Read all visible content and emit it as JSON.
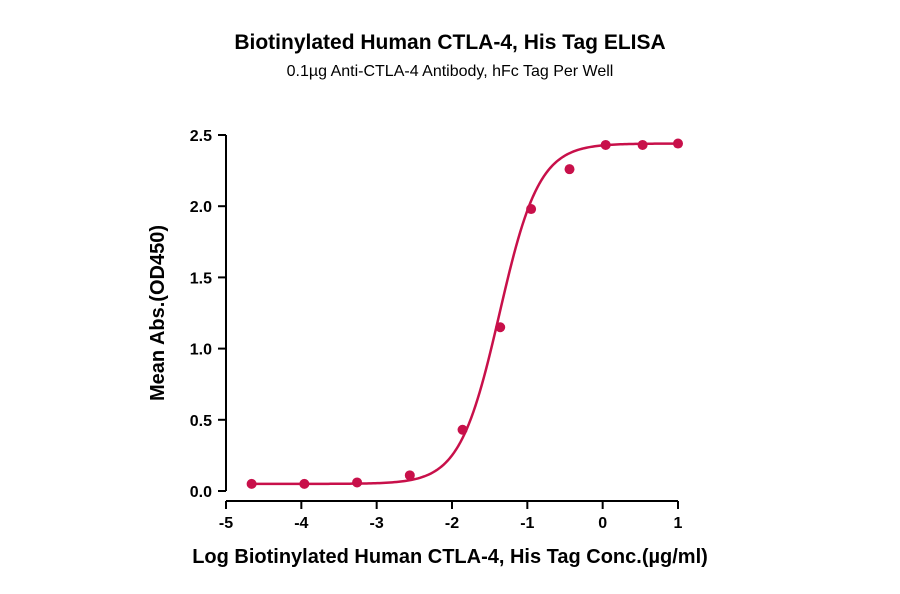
{
  "chart_data": {
    "type": "scatter",
    "title": "Biotinylated Human CTLA-4, His Tag ELISA",
    "subtitle": "0.1µg Anti-CTLA-4 Antibody, hFc Tag Per Well",
    "xlabel": "Log Biotinylated Human CTLA-4, His Tag Conc.(µg/ml)",
    "ylabel": "Mean Abs.(OD450)",
    "xlim": [
      -5,
      1
    ],
    "ylim": [
      0,
      2.5
    ],
    "x_ticks": [
      "-5",
      "-4",
      "-3",
      "-2",
      "-1",
      "0",
      "1"
    ],
    "y_ticks": [
      "0.0",
      "0.5",
      "1.0",
      "1.5",
      "2.0",
      "2.5"
    ],
    "grid": false,
    "legend": "none",
    "color": "#C8104A",
    "series": [
      {
        "x": [
          -4.66,
          -3.96,
          -3.26,
          -2.56,
          -1.86,
          -1.36,
          -0.95,
          -0.44,
          0.04,
          0.53,
          1.0
        ],
        "y": [
          0.05,
          0.05,
          0.06,
          0.11,
          0.43,
          1.15,
          1.98,
          2.26,
          2.43,
          2.43,
          2.44
        ]
      }
    ],
    "fit_curve": {
      "model": "4PL",
      "bottom": 0.05,
      "top": 2.44,
      "log_ec50": -1.37,
      "hill_slope": 1.65
    }
  }
}
